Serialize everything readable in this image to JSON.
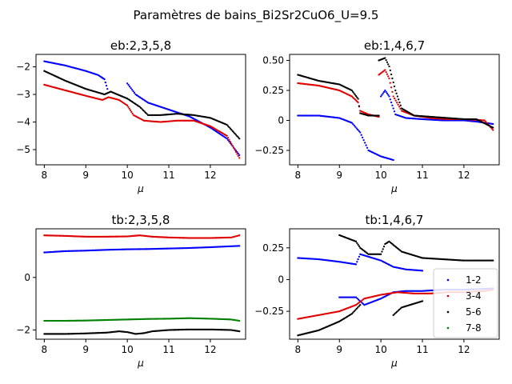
{
  "figure": {
    "suptitle": "Paramètres de bains_Bi2Sr2CuO6_U=9.5"
  },
  "colors": {
    "blue": "#0000ff",
    "red": "#e00000",
    "green": "#008000",
    "black": "#000000"
  },
  "chart_data": [
    {
      "type": "scatter",
      "title": "eb:2,3,5,8",
      "xlabel": "μ",
      "ylabel": "",
      "xlim": [
        7.8,
        12.85
      ],
      "ylim": [
        -5.55,
        -1.55
      ],
      "xticks": [
        8,
        9,
        10,
        11,
        12
      ],
      "yticks": [
        -5,
        -4,
        -3,
        -2
      ],
      "grid": false,
      "series": [
        {
          "color": "blue",
          "segments": [
            [
              [
                8.0,
                -1.8
              ],
              [
                8.5,
                -1.95
              ],
              [
                9.0,
                -2.15
              ],
              [
                9.3,
                -2.3
              ],
              [
                9.45,
                -2.45
              ],
              [
                9.52,
                -2.8
              ]
            ],
            [
              [
                10.0,
                -2.6
              ],
              [
                10.2,
                -3.0
              ],
              [
                10.5,
                -3.3
              ],
              [
                11.0,
                -3.55
              ],
              [
                11.5,
                -3.8
              ],
              [
                12.0,
                -4.2
              ],
              [
                12.4,
                -4.6
              ],
              [
                12.7,
                -5.2
              ]
            ]
          ]
        },
        {
          "color": "red",
          "segments": [
            [
              [
                8.0,
                -2.65
              ],
              [
                8.5,
                -2.85
              ],
              [
                9.0,
                -3.05
              ],
              [
                9.4,
                -3.2
              ],
              [
                9.55,
                -3.1
              ],
              [
                9.8,
                -3.2
              ],
              [
                10.0,
                -3.4
              ],
              [
                10.15,
                -3.75
              ],
              [
                10.4,
                -3.95
              ],
              [
                10.8,
                -4.0
              ],
              [
                11.2,
                -3.95
              ],
              [
                11.6,
                -3.95
              ],
              [
                12.0,
                -4.15
              ],
              [
                12.4,
                -4.5
              ],
              [
                12.7,
                -5.3
              ]
            ]
          ]
        },
        {
          "color": "black",
          "segments": [
            [
              [
                8.0,
                -2.15
              ],
              [
                8.5,
                -2.5
              ],
              [
                9.0,
                -2.8
              ],
              [
                9.45,
                -3.0
              ],
              [
                9.6,
                -2.9
              ],
              [
                10.0,
                -3.15
              ],
              [
                10.3,
                -3.45
              ],
              [
                10.5,
                -3.75
              ],
              [
                10.8,
                -3.75
              ],
              [
                11.2,
                -3.7
              ],
              [
                11.6,
                -3.75
              ],
              [
                12.0,
                -3.85
              ],
              [
                12.4,
                -4.1
              ],
              [
                12.7,
                -4.6
              ]
            ]
          ]
        }
      ]
    },
    {
      "type": "scatter",
      "title": "eb:1,4,6,7",
      "xlabel": "μ",
      "ylabel": "",
      "xlim": [
        7.8,
        12.85
      ],
      "ylim": [
        -0.37,
        0.55
      ],
      "xticks": [
        8,
        9,
        10,
        11,
        12
      ],
      "yticks": [
        -0.25,
        0.0,
        0.25,
        0.5
      ],
      "grid": false,
      "series": [
        {
          "color": "blue",
          "segments": [
            [
              [
                8.0,
                0.04
              ],
              [
                8.5,
                0.04
              ],
              [
                9.0,
                0.02
              ],
              [
                9.3,
                -0.02
              ],
              [
                9.5,
                -0.1
              ],
              [
                9.7,
                -0.25
              ],
              [
                10.0,
                -0.3
              ],
              [
                10.3,
                -0.33
              ]
            ],
            [
              [
                10.0,
                0.2
              ],
              [
                10.1,
                0.25
              ],
              [
                10.2,
                0.2
              ],
              [
                10.35,
                0.05
              ],
              [
                10.6,
                0.02
              ],
              [
                11.0,
                0.01
              ],
              [
                11.5,
                0.0
              ],
              [
                12.0,
                0.0
              ],
              [
                12.3,
                -0.01
              ],
              [
                12.7,
                -0.03
              ]
            ]
          ]
        },
        {
          "color": "red",
          "segments": [
            [
              [
                8.0,
                0.31
              ],
              [
                8.5,
                0.29
              ],
              [
                9.0,
                0.25
              ],
              [
                9.3,
                0.2
              ],
              [
                9.45,
                0.15
              ],
              [
                9.5,
                0.08
              ],
              [
                9.7,
                0.05
              ],
              [
                9.95,
                0.03
              ]
            ],
            [
              [
                9.95,
                0.38
              ],
              [
                10.1,
                0.42
              ],
              [
                10.2,
                0.35
              ],
              [
                10.3,
                0.2
              ],
              [
                10.5,
                0.08
              ],
              [
                10.8,
                0.04
              ],
              [
                11.2,
                0.02
              ],
              [
                11.6,
                0.01
              ],
              [
                12.0,
                0.01
              ],
              [
                12.5,
                0.0
              ],
              [
                12.7,
                -0.08
              ]
            ]
          ]
        },
        {
          "color": "black",
          "segments": [
            [
              [
                8.0,
                0.38
              ],
              [
                8.5,
                0.33
              ],
              [
                9.0,
                0.3
              ],
              [
                9.3,
                0.25
              ],
              [
                9.45,
                0.18
              ],
              [
                9.5,
                0.06
              ],
              [
                9.7,
                0.04
              ],
              [
                9.95,
                0.04
              ]
            ],
            [
              [
                9.95,
                0.5
              ],
              [
                10.1,
                0.52
              ],
              [
                10.2,
                0.45
              ],
              [
                10.35,
                0.25
              ],
              [
                10.5,
                0.1
              ],
              [
                10.8,
                0.04
              ],
              [
                11.2,
                0.03
              ],
              [
                11.6,
                0.02
              ],
              [
                12.0,
                0.01
              ],
              [
                12.3,
                0.01
              ],
              [
                12.7,
                -0.06
              ]
            ]
          ]
        }
      ]
    },
    {
      "type": "scatter",
      "title": "tb:2,3,5,8",
      "xlabel": "μ",
      "ylabel": "",
      "xlim": [
        7.8,
        12.85
      ],
      "ylim": [
        -2.35,
        1.85
      ],
      "xticks": [
        8,
        9,
        10,
        11,
        12
      ],
      "yticks": [
        -2,
        0
      ],
      "grid": false,
      "series": [
        {
          "color": "red",
          "segments": [
            [
              [
                8.0,
                1.6
              ],
              [
                8.5,
                1.58
              ],
              [
                9.0,
                1.55
              ],
              [
                9.5,
                1.55
              ],
              [
                10.0,
                1.56
              ],
              [
                10.3,
                1.6
              ],
              [
                10.6,
                1.55
              ],
              [
                11.0,
                1.52
              ],
              [
                11.5,
                1.5
              ],
              [
                12.0,
                1.5
              ],
              [
                12.5,
                1.52
              ],
              [
                12.7,
                1.6
              ]
            ]
          ]
        },
        {
          "color": "blue",
          "segments": [
            [
              [
                8.0,
                0.95
              ],
              [
                8.5,
                1.0
              ],
              [
                9.0,
                1.02
              ],
              [
                9.5,
                1.05
              ],
              [
                10.0,
                1.07
              ],
              [
                10.5,
                1.08
              ],
              [
                11.0,
                1.1
              ],
              [
                11.5,
                1.12
              ],
              [
                12.0,
                1.15
              ],
              [
                12.7,
                1.2
              ]
            ]
          ]
        },
        {
          "color": "green",
          "segments": [
            [
              [
                8.0,
                -1.65
              ],
              [
                8.5,
                -1.65
              ],
              [
                9.0,
                -1.64
              ],
              [
                9.5,
                -1.62
              ],
              [
                10.0,
                -1.6
              ],
              [
                10.5,
                -1.58
              ],
              [
                11.0,
                -1.57
              ],
              [
                11.5,
                -1.55
              ],
              [
                12.0,
                -1.57
              ],
              [
                12.5,
                -1.6
              ],
              [
                12.7,
                -1.65
              ]
            ]
          ]
        },
        {
          "color": "black",
          "segments": [
            [
              [
                8.0,
                -2.15
              ],
              [
                8.5,
                -2.15
              ],
              [
                9.0,
                -2.13
              ],
              [
                9.5,
                -2.1
              ],
              [
                9.8,
                -2.05
              ],
              [
                10.0,
                -2.08
              ],
              [
                10.2,
                -2.15
              ],
              [
                10.4,
                -2.12
              ],
              [
                10.6,
                -2.05
              ],
              [
                11.0,
                -2.0
              ],
              [
                11.5,
                -1.98
              ],
              [
                12.0,
                -1.98
              ],
              [
                12.5,
                -2.0
              ],
              [
                12.7,
                -2.05
              ]
            ]
          ]
        }
      ]
    },
    {
      "type": "scatter",
      "title": "tb:1,4,6,7",
      "xlabel": "μ",
      "ylabel": "",
      "xlim": [
        7.8,
        12.85
      ],
      "ylim": [
        -0.47,
        0.4
      ],
      "xticks": [
        8,
        9,
        10,
        11,
        12
      ],
      "yticks": [
        -0.25,
        0.0,
        0.25
      ],
      "grid": false,
      "legend_position": "lower-right",
      "legend": [
        "1-2",
        "3-4",
        "5-6",
        "7-8"
      ],
      "series": [
        {
          "color": "blue",
          "segments": [
            [
              [
                8.0,
                0.17
              ],
              [
                8.5,
                0.16
              ],
              [
                9.0,
                0.14
              ],
              [
                9.4,
                0.12
              ],
              [
                9.5,
                0.2
              ],
              [
                9.7,
                0.18
              ],
              [
                10.0,
                0.15
              ],
              [
                10.3,
                0.1
              ],
              [
                10.6,
                0.08
              ],
              [
                11.0,
                0.07
              ]
            ],
            [
              [
                9.0,
                -0.14
              ],
              [
                9.4,
                -0.14
              ],
              [
                9.6,
                -0.2
              ],
              [
                10.0,
                -0.15
              ],
              [
                10.3,
                -0.1
              ],
              [
                10.6,
                -0.09
              ],
              [
                11.0,
                -0.09
              ],
              [
                11.5,
                -0.08
              ],
              [
                12.0,
                -0.08
              ],
              [
                12.7,
                -0.07
              ]
            ]
          ]
        },
        {
          "color": "red",
          "segments": [
            [
              [
                8.0,
                -0.31
              ],
              [
                8.5,
                -0.28
              ],
              [
                9.0,
                -0.25
              ],
              [
                9.4,
                -0.2
              ],
              [
                9.6,
                -0.15
              ],
              [
                10.0,
                -0.12
              ],
              [
                10.4,
                -0.1
              ],
              [
                10.8,
                -0.11
              ],
              [
                11.2,
                -0.11
              ],
              [
                11.6,
                -0.1
              ],
              [
                12.0,
                -0.1
              ],
              [
                12.5,
                -0.09
              ],
              [
                12.7,
                -0.08
              ]
            ]
          ]
        },
        {
          "color": "black",
          "segments": [
            [
              [
                8.0,
                -0.44
              ],
              [
                8.5,
                -0.4
              ],
              [
                9.0,
                -0.33
              ],
              [
                9.3,
                -0.27
              ],
              [
                9.5,
                -0.2
              ]
            ],
            [
              [
                9.0,
                0.35
              ],
              [
                9.4,
                0.3
              ],
              [
                9.5,
                0.25
              ],
              [
                9.7,
                0.2
              ],
              [
                10.0,
                0.2
              ],
              [
                10.1,
                0.28
              ],
              [
                10.2,
                0.3
              ],
              [
                10.5,
                0.22
              ],
              [
                11.0,
                0.17
              ],
              [
                11.5,
                0.16
              ],
              [
                12.0,
                0.15
              ],
              [
                12.7,
                0.15
              ]
            ],
            [
              [
                10.3,
                -0.28
              ],
              [
                10.5,
                -0.22
              ],
              [
                10.8,
                -0.19
              ],
              [
                11.0,
                -0.17
              ]
            ]
          ]
        },
        {
          "color": "green",
          "segments": []
        }
      ]
    }
  ]
}
